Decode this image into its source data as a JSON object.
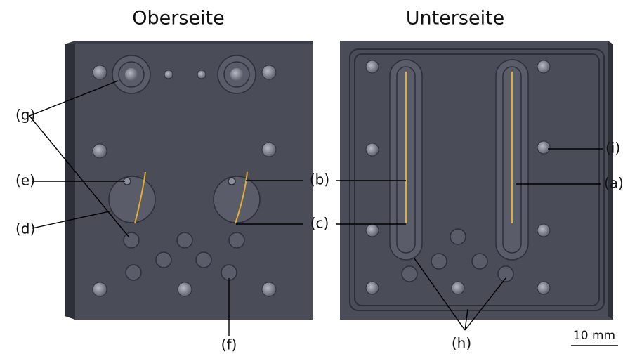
{
  "titles": {
    "top": "Oberseite",
    "bottom": "Unterseite"
  },
  "labels": {
    "a": "(a)",
    "b": "(b)",
    "c": "(c)",
    "d": "(d)",
    "e": "(e)",
    "f": "(f)",
    "g": "(g)",
    "h": "(h)",
    "i": "(i)"
  },
  "scale_bar": "10 mm"
}
